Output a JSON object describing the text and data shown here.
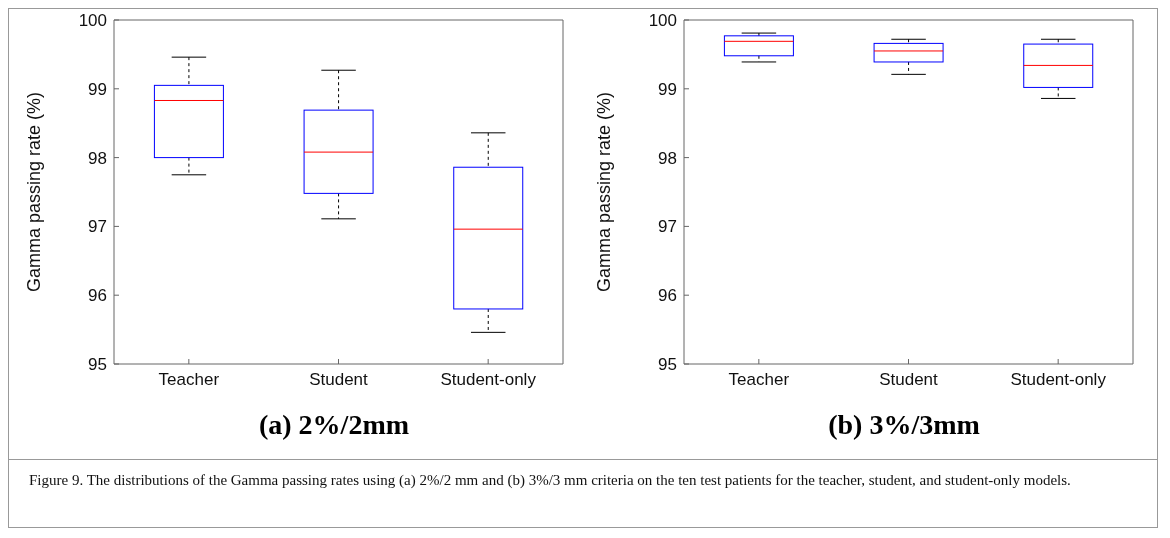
{
  "chart_data": [
    {
      "type": "box",
      "title": "(a) 2%/2mm",
      "ylabel": "Gamma passing rate (%)",
      "categories": [
        "Teacher",
        "Student",
        "Student-only"
      ],
      "ylim": [
        95,
        100
      ],
      "yticks": [
        95,
        96,
        97,
        98,
        99,
        100
      ],
      "grid": false,
      "legend": false,
      "series": [
        {
          "color": "#0000ff",
          "boxes": [
            {
              "low": 97.75,
              "q1": 98.0,
              "median": 98.83,
              "q3": 99.05,
              "high": 99.46
            },
            {
              "low": 97.11,
              "q1": 97.48,
              "median": 98.08,
              "q3": 98.69,
              "high": 99.27
            },
            {
              "low": 95.46,
              "q1": 95.8,
              "median": 96.96,
              "q3": 97.86,
              "high": 98.36
            }
          ]
        }
      ],
      "annotations": [
        "Figure 9. The distributions of the Gamma passing rates using (a) 2%/2 mm and (b) 3%/3 mm criteria on the ten test patients for the teacher, student, and student-only models."
      ]
    },
    {
      "type": "box",
      "title": "(b) 3%/3mm",
      "ylabel": "Gamma passing rate (%)",
      "categories": [
        "Teacher",
        "Student",
        "Student-only"
      ],
      "ylim": [
        95,
        100
      ],
      "yticks": [
        95,
        96,
        97,
        98,
        99,
        100
      ],
      "grid": false,
      "legend": false,
      "series": [
        {
          "color": "#0000ff",
          "boxes": [
            {
              "low": 99.39,
              "q1": 99.48,
              "median": 99.69,
              "q3": 99.77,
              "high": 99.81
            },
            {
              "low": 99.21,
              "q1": 99.39,
              "median": 99.55,
              "q3": 99.66,
              "high": 99.72
            },
            {
              "low": 98.86,
              "q1": 99.02,
              "median": 99.34,
              "q3": 99.65,
              "high": 99.72
            }
          ]
        }
      ]
    }
  ]
}
